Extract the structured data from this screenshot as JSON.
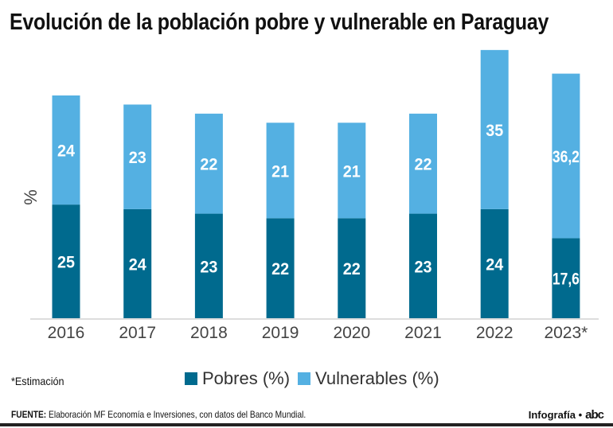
{
  "title": "Evolución de la población pobre y vulnerable en Paraguay",
  "note": "*Estimación",
  "source_label": "FUENTE:",
  "source_text": "Elaboración MF Economía e Inversiones, con datos del Banco Mundial.",
  "credit": "Infografía •",
  "logo": "abc",
  "colors": {
    "pobres": "#006a8e",
    "vulnerables": "#54b0e2"
  },
  "chart_data": {
    "type": "bar",
    "stacked": true,
    "ylabel": "%",
    "categories": [
      "2016",
      "2017",
      "2018",
      "2019",
      "2020",
      "2021",
      "2022",
      "2023*"
    ],
    "series": [
      {
        "name": "Pobres (%)",
        "values": [
          25,
          24,
          23,
          22,
          22,
          23,
          24,
          17.6
        ],
        "labels": [
          "25",
          "24",
          "23",
          "22",
          "22",
          "23",
          "24",
          "17,6"
        ]
      },
      {
        "name": "Vulnerables (%)",
        "values": [
          24,
          23,
          22,
          21,
          21,
          22,
          35,
          36.2
        ],
        "labels": [
          "24",
          "23",
          "22",
          "21",
          "21",
          "22",
          "35",
          "36,2"
        ]
      }
    ],
    "ylim": [
      0,
      60
    ],
    "grid": false,
    "legend": "bottom"
  }
}
